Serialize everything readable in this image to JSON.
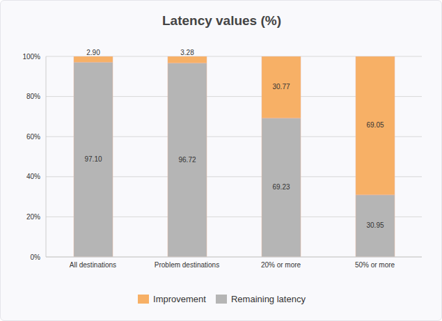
{
  "chart_data": {
    "type": "bar",
    "title": "Latency values (%)",
    "stacked": true,
    "grid": true,
    "legend": "bottom",
    "data_labels": true,
    "categories": [
      "All destinations",
      "Problem destinations",
      "20% or more",
      "50% or more"
    ],
    "series": [
      {
        "name": "Improvement",
        "color": "#f7b066",
        "values": [
          2.9,
          3.28,
          30.77,
          69.05
        ],
        "value_labels": [
          "2.90",
          "3.28",
          "30.77",
          "69.05"
        ]
      },
      {
        "name": "Remaining latency",
        "color": "#b5b5b5",
        "values": [
          97.1,
          96.72,
          69.23,
          30.95
        ],
        "value_labels": [
          "97.10",
          "96.72",
          "69.23",
          "30.95"
        ]
      }
    ],
    "ylim": [
      0,
      100
    ],
    "yticks": [
      {
        "value": 0,
        "label": "0%"
      },
      {
        "value": 20,
        "label": "20%"
      },
      {
        "value": 40,
        "label": "40%"
      },
      {
        "value": 60,
        "label": "60%"
      },
      {
        "value": 80,
        "label": "80%"
      },
      {
        "value": 100,
        "label": "100%"
      }
    ]
  }
}
